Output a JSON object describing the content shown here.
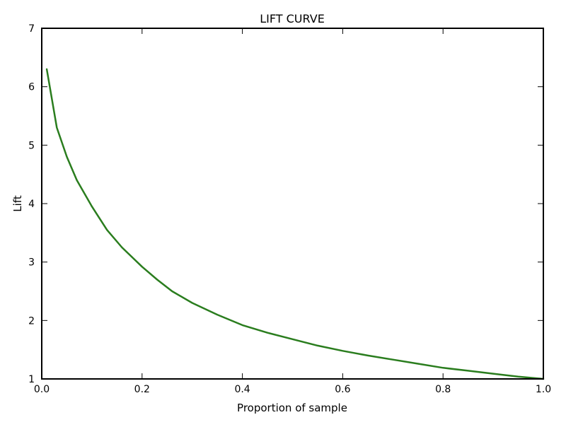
{
  "chart_data": {
    "type": "line",
    "title": "LIFT CURVE",
    "xlabel": "Proportion of sample",
    "ylabel": "Lift",
    "xlim": [
      0.0,
      1.0
    ],
    "ylim": [
      1,
      7
    ],
    "x_ticks": [
      "0.0",
      "0.2",
      "0.4",
      "0.6",
      "0.8",
      "1.0"
    ],
    "y_ticks": [
      "1",
      "2",
      "3",
      "4",
      "5",
      "6",
      "7"
    ],
    "grid": false,
    "legend": "none",
    "series": [
      {
        "color": "#2a7d1e",
        "x": [
          0.01,
          0.02,
          0.03,
          0.05,
          0.07,
          0.1,
          0.13,
          0.16,
          0.2,
          0.23,
          0.26,
          0.3,
          0.35,
          0.4,
          0.45,
          0.5,
          0.55,
          0.6,
          0.65,
          0.7,
          0.75,
          0.8,
          0.85,
          0.9,
          0.95,
          1.0
        ],
        "y": [
          6.3,
          5.8,
          5.3,
          4.8,
          4.4,
          3.95,
          3.55,
          3.25,
          2.92,
          2.7,
          2.5,
          2.3,
          2.1,
          1.92,
          1.79,
          1.68,
          1.57,
          1.48,
          1.4,
          1.33,
          1.26,
          1.19,
          1.14,
          1.09,
          1.04,
          1.0
        ]
      }
    ]
  }
}
